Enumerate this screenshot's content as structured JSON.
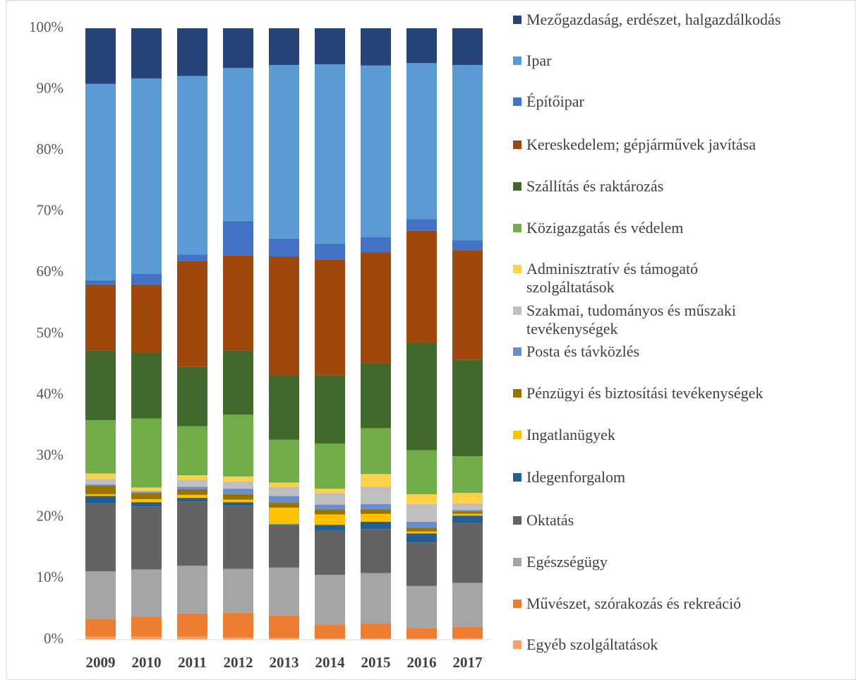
{
  "chart_data": {
    "type": "stacked_bar_100",
    "categories": [
      "2009",
      "2010",
      "2011",
      "2012",
      "2013",
      "2014",
      "2015",
      "2016",
      "2017"
    ],
    "ylim": [
      0,
      100
    ],
    "yticks": [
      {
        "value": 0,
        "label": "0%"
      },
      {
        "value": 10,
        "label": "10%"
      },
      {
        "value": 20,
        "label": "20%"
      },
      {
        "value": 30,
        "label": "30%"
      },
      {
        "value": 40,
        "label": "40%"
      },
      {
        "value": 50,
        "label": "50%"
      },
      {
        "value": 60,
        "label": "60%"
      },
      {
        "value": 70,
        "label": "70%"
      },
      {
        "value": 80,
        "label": "80%"
      },
      {
        "value": 90,
        "label": "90%"
      },
      {
        "value": 100,
        "label": "100%"
      }
    ],
    "legend": "right",
    "series": [
      {
        "name": "Mezőgazdaság, erdészet, halgazdálkodás",
        "color": "#264478",
        "values": [
          9.1,
          8.2,
          7.8,
          6.5,
          6.0,
          5.9,
          6.1,
          5.7,
          6.0
        ]
      },
      {
        "name": "Ipar",
        "color": "#5b9bd5",
        "values": [
          32.1,
          31.9,
          29.2,
          25.0,
          28.4,
          29.3,
          28.0,
          25.5,
          28.7
        ]
      },
      {
        "name": "Építőipar",
        "color": "#4472c4",
        "values": [
          0.7,
          1.8,
          1.1,
          5.6,
          2.9,
          2.6,
          2.5,
          1.9,
          1.6
        ]
      },
      {
        "name": "Kereskedelem; gépjárművek javítása",
        "color": "#9e480e",
        "values": [
          10.8,
          11.1,
          17.3,
          15.6,
          19.4,
          19.0,
          18.2,
          18.4,
          17.9
        ]
      },
      {
        "name": "Szállítás és raktározás",
        "color": "#43682b",
        "values": [
          11.4,
          10.8,
          9.7,
          10.5,
          10.6,
          11.1,
          10.6,
          17.5,
          15.8
        ]
      },
      {
        "name": "Közigazgatás és védelem",
        "color": "#70ad47",
        "values": [
          8.7,
          11.3,
          8.0,
          10.1,
          7.0,
          7.4,
          7.5,
          7.2,
          6.0
        ]
      },
      {
        "name": "Adminisztratív és támogató szolgáltatások",
        "color": "#ffd04a",
        "values": [
          0.9,
          0.5,
          0.7,
          0.8,
          0.7,
          0.7,
          2.1,
          1.6,
          1.7
        ]
      },
      {
        "name": "Szakmai, tudományos és műszaki tevékenységek",
        "color": "#bfbfbf",
        "values": [
          0.9,
          0.2,
          1.2,
          1.2,
          1.5,
          1.9,
          2.8,
          2.9,
          1.1
        ]
      },
      {
        "name": "Posta és távközlés",
        "color": "#698ed0",
        "values": [
          0.2,
          0.2,
          0.4,
          0.9,
          1.1,
          0.8,
          0.9,
          1.0,
          0.2
        ]
      },
      {
        "name": "Pénzügyi és biztosítási tevékenységek",
        "color": "#997300",
        "values": [
          1.4,
          1.0,
          0.9,
          0.9,
          0.8,
          0.8,
          0.7,
          0.6,
          0.4
        ]
      },
      {
        "name": "Ingatlanügyek",
        "color": "#ffc000",
        "values": [
          0.3,
          0.5,
          0.5,
          0.4,
          2.7,
          1.7,
          1.3,
          0.3,
          0.3
        ]
      },
      {
        "name": "Idegenforgalom",
        "color": "#255e91",
        "values": [
          1.2,
          0.7,
          0.6,
          0.6,
          0.1,
          0.9,
          1.2,
          1.5,
          1.2
        ]
      },
      {
        "name": "Oktatás",
        "color": "#636363",
        "values": [
          11.1,
          10.3,
          10.5,
          10.3,
          7.0,
          7.3,
          7.2,
          7.1,
          9.8
        ]
      },
      {
        "name": "Egészségügy",
        "color": "#a5a5a5",
        "values": [
          7.8,
          7.7,
          7.8,
          7.2,
          7.8,
          8.1,
          8.2,
          6.9,
          7.2
        ]
      },
      {
        "name": "Művészet, szórakozás és rekreáció",
        "color": "#ed7d31",
        "values": [
          2.9,
          3.3,
          3.8,
          4.0,
          3.7,
          2.3,
          2.5,
          1.7,
          1.9
        ]
      },
      {
        "name": "Egyéb szolgáltatások",
        "color": "#f4a06a",
        "values": [
          0.5,
          0.5,
          0.5,
          0.4,
          0.3,
          0.2,
          0.2,
          0.2,
          0.2
        ]
      }
    ]
  }
}
